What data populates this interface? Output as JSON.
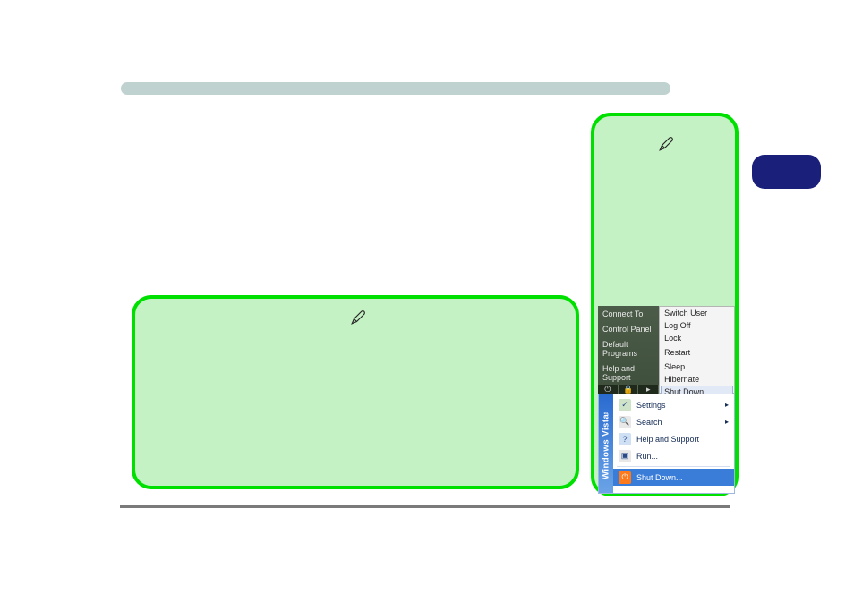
{
  "colors": {
    "top_bar": "#c0d2cf",
    "page_tab": "#1a1f7a",
    "green_fill": "#c4f2c4",
    "green_border": "#00e000",
    "hr": "#7a7a7a",
    "vista_left_bg": "#4b5c48",
    "vista_right_bg": "#f4f4f4",
    "xp_side_grad_top": "#6aa3e6",
    "xp_side_grad_bot": "#2a6bd0",
    "xp_highlight": "#3a7dd8"
  },
  "icons": {
    "pen": "pen-icon",
    "power": "⏻",
    "lock": "🔒",
    "chevron": "▸",
    "settings": "✓",
    "search": "🔍",
    "help": "?",
    "run": "▶",
    "shutdown": "⏻"
  },
  "vista": {
    "left_items": [
      "Connect To",
      "Control Panel",
      "Default Programs",
      "Help and Support"
    ],
    "btn_row": [
      "⏻",
      "🔒",
      "▸"
    ],
    "right_items_top": [
      "Switch User",
      "Log Off",
      "Lock"
    ],
    "right_mid": [
      "Restart"
    ],
    "right_items_bot": [
      "Sleep",
      "Hibernate"
    ],
    "right_highlight": "Shut Down"
  },
  "xp": {
    "side_label": "Windows Vista",
    "side_tm": "™",
    "items": [
      {
        "icon": "✓",
        "icon_bg": "#cfe3c9",
        "label": "Settings",
        "arrow": true,
        "highlight": false
      },
      {
        "icon": "🔍",
        "icon_bg": "#e8e8e8",
        "label": "Search",
        "arrow": true,
        "highlight": false
      },
      {
        "icon": "?",
        "icon_bg": "#cfe0f4",
        "label": "Help and Support",
        "arrow": false,
        "highlight": false
      },
      {
        "icon": "▣",
        "icon_bg": "#e8e8e8",
        "label": "Run...",
        "arrow": false,
        "highlight": false
      },
      {
        "icon": "⏻",
        "icon_bg": "#ff7a1a",
        "label": "Shut Down...",
        "arrow": false,
        "highlight": true
      }
    ]
  }
}
